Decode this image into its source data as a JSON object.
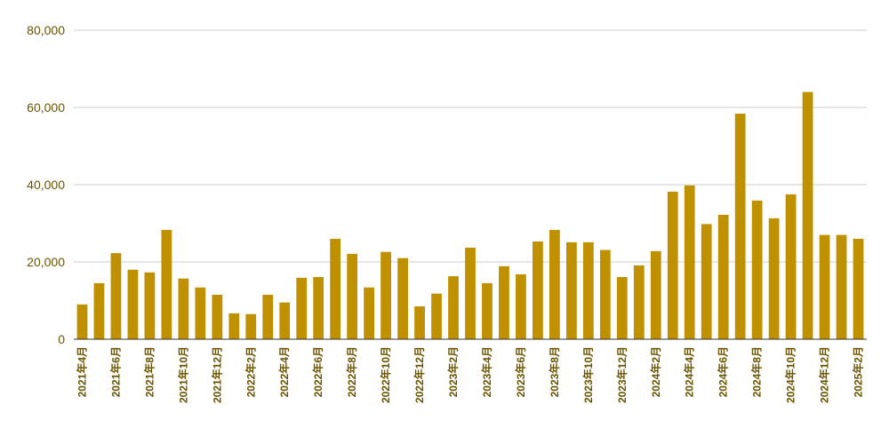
{
  "chart_data": {
    "type": "bar",
    "title": "",
    "xlabel": "",
    "ylabel": "",
    "ylim": [
      0,
      80000
    ],
    "yticks": [
      0,
      20000,
      40000,
      60000,
      80000
    ],
    "ytick_labels": [
      "0",
      "20,000",
      "40,000",
      "60,000",
      "80,000"
    ],
    "grid": true,
    "legend": "none",
    "bar_color": "#bf9000",
    "axis_text_color": "#6b5400",
    "gridline_color": "#cccccc",
    "categories": [
      "2021年4月",
      "2021年5月",
      "2021年6月",
      "2021年7月",
      "2021年8月",
      "2021年9月",
      "2021年10月",
      "2021年11月",
      "2021年12月",
      "2022年1月",
      "2022年2月",
      "2022年3月",
      "2022年4月",
      "2022年5月",
      "2022年6月",
      "2022年7月",
      "2022年8月",
      "2022年9月",
      "2022年10月",
      "2022年11月",
      "2022年12月",
      "2023年1月",
      "2023年2月",
      "2023年3月",
      "2023年4月",
      "2023年5月",
      "2023年6月",
      "2023年7月",
      "2023年8月",
      "2023年9月",
      "2023年10月",
      "2023年11月",
      "2023年12月",
      "2024年1月",
      "2024年2月",
      "2024年3月",
      "2024年4月",
      "2024年5月",
      "2024年6月",
      "2024年7月",
      "2024年8月",
      "2024年9月",
      "2024年10月",
      "2024年11月",
      "2024年12月",
      "2025年1月",
      "2025年2月"
    ],
    "visible_tick_labels": [
      "2021年4月",
      "2021年6月",
      "2021年8月",
      "2021年10月",
      "2021年12月",
      "2022年2月",
      "2022年4月",
      "2022年6月",
      "2022年8月",
      "2022年10月",
      "2022年12月",
      "2023年2月",
      "2023年4月",
      "2023年6月",
      "2023年8月",
      "2023年10月",
      "2023年12月",
      "2024年2月",
      "2024年4月",
      "2024年6月",
      "2024年8月",
      "2024年10月",
      "2024年12月",
      "2025年2月"
    ],
    "values": [
      9000,
      14500,
      22300,
      18000,
      17300,
      28300,
      15700,
      13400,
      11500,
      6700,
      6500,
      11500,
      9500,
      15900,
      16100,
      26000,
      22100,
      13400,
      22600,
      21000,
      8500,
      11800,
      16300,
      23700,
      14500,
      18900,
      16800,
      25300,
      28300,
      25100,
      25100,
      23100,
      16100,
      19100,
      22800,
      38200,
      39800,
      29800,
      32200,
      58400,
      35900,
      31300,
      37500,
      64000,
      27000,
      27000,
      26000
    ]
  }
}
